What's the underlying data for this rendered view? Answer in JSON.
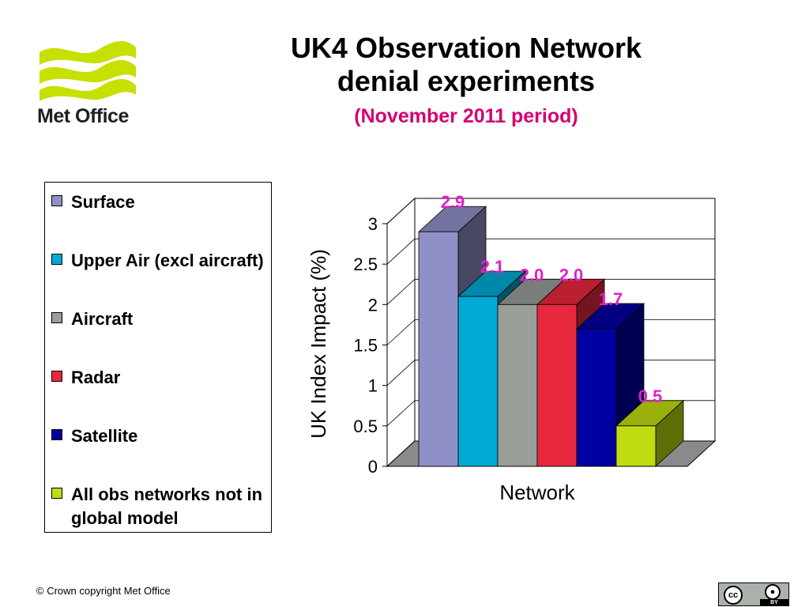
{
  "logo": {
    "text": "Met Office",
    "wave_color": "#c6e000"
  },
  "slide": {
    "title_line1": "UK4 Observation Network",
    "title_line2": "denial experiments",
    "subtitle": "(November 2011 period)"
  },
  "footer": {
    "copyright": "© Crown copyright   Met Office"
  },
  "license_badge": {
    "cc_label": "cc",
    "by_label": "BY"
  },
  "chart_data": {
    "type": "bar",
    "three_d": true,
    "categories": [
      "Surface",
      "Upper Air (excl aircraft)",
      "Aircraft",
      "Radar",
      "Satellite",
      "All obs networks not in global model"
    ],
    "values": [
      2.9,
      2.1,
      2.0,
      2.0,
      1.7,
      0.5
    ],
    "data_labels": [
      "2.9",
      "2.1",
      "2.0",
      "2.0",
      "1.7",
      "0.5"
    ],
    "colors": [
      "#9090c8",
      "#00aad4",
      "#999e98",
      "#e8283c",
      "#0000a0",
      "#c0dc10"
    ],
    "xlabel": "Network",
    "ylabel": "UK Index Impact (%)",
    "ylim": [
      0,
      3
    ],
    "yticks": [
      "0",
      "0.5",
      "1",
      "1.5",
      "2",
      "2.5",
      "3"
    ],
    "label_color": "#e020c8",
    "grid": true,
    "legend_position": "left"
  }
}
